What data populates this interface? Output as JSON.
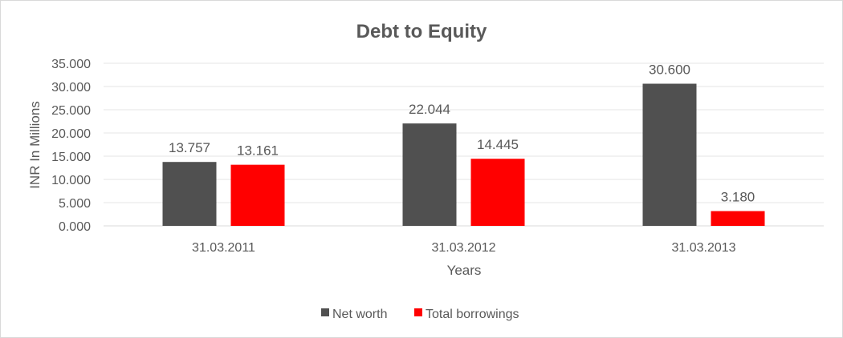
{
  "chart_data": {
    "type": "bar",
    "title": "Debt to Equity",
    "xlabel": "Years",
    "ylabel": "INR In Millions",
    "categories": [
      "31.03.2011",
      "31.03.2012",
      "31.03.2013"
    ],
    "series": [
      {
        "name": "Net worth",
        "values": [
          13.757,
          22.044,
          30.6
        ],
        "labels": [
          "13.757",
          "22.044",
          "30.600"
        ],
        "color": "#505050"
      },
      {
        "name": "Total borrowings",
        "values": [
          13.161,
          14.445,
          3.18
        ],
        "labels": [
          "13.161",
          "14.445",
          "3.180"
        ],
        "color": "#ff0000"
      }
    ],
    "ylim": [
      0,
      35
    ],
    "yticks": [
      "0.000",
      "5.000",
      "10.000",
      "15.000",
      "20.000",
      "25.000",
      "30.000",
      "35.000"
    ],
    "grid": true,
    "legend": "bottom"
  }
}
